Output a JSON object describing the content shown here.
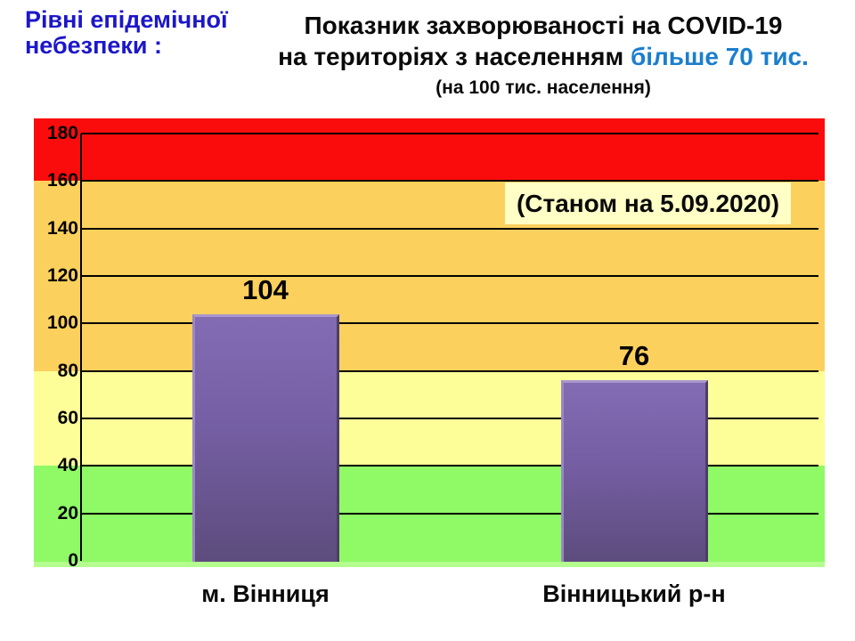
{
  "header": {
    "danger_line1": "Рівні епідемічної",
    "danger_line2": "небезпеки :",
    "title_line1": "Показник захворюваності на COVID-19",
    "title_line2_black": "на територіях з населенням ",
    "title_line2_blue": "більше 70 тис.",
    "title_line3": "(на 100 тис. населення)"
  },
  "chart_data": {
    "type": "bar",
    "title": "Показник захворюваності на COVID-19 на територіях з населенням більше 70 тис. (на 100 тис. населення)",
    "annotation": "(Станом на 5.09.2020)",
    "categories": [
      "м. Вінниця",
      "Вінницький р-н"
    ],
    "values": [
      104,
      76
    ],
    "bar_labels": [
      "104",
      "76"
    ],
    "ylim": [
      0,
      180
    ],
    "yticks": [
      0,
      20,
      40,
      60,
      80,
      100,
      120,
      140,
      160,
      180
    ],
    "grid": true,
    "legend": "none",
    "zones": [
      {
        "name": "green-zone",
        "from": 0,
        "to": 40,
        "color": "#8ffa66"
      },
      {
        "name": "yellow-zone",
        "from": 40,
        "to": 80,
        "color": "#fefe99"
      },
      {
        "name": "orange-zone",
        "from": 80,
        "to": 160,
        "color": "#fcd05c"
      },
      {
        "name": "red-zone",
        "from": 160,
        "to": null,
        "color": "#fb0c0c"
      }
    ],
    "bar_color": "#7c63ab"
  },
  "colors": {
    "heading_blue": "#1c17c9",
    "accent_blue": "#1b7ecd",
    "gridline": "#000000",
    "baseline_strip": "#b5fc8f",
    "date_box_bg": "#ffffc6",
    "text": "#000000"
  }
}
